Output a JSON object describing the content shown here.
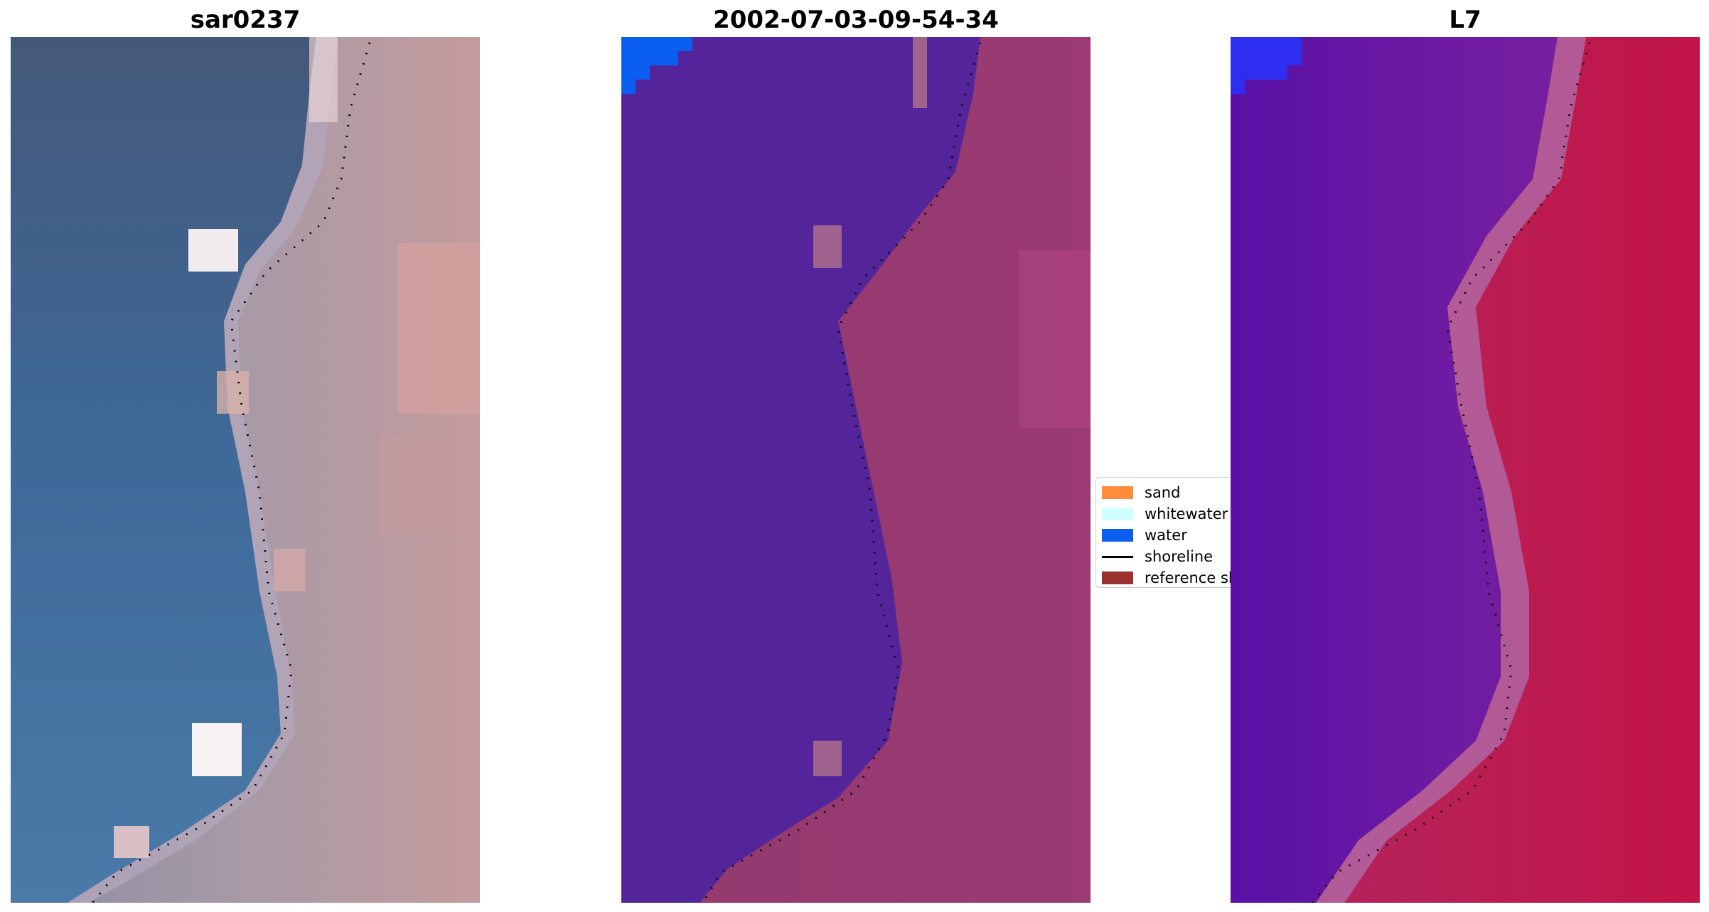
{
  "panels": [
    {
      "title": "sar0237"
    },
    {
      "title": "2002-07-03-09-54-34"
    },
    {
      "title": "L7"
    }
  ],
  "legend": {
    "items": [
      {
        "label": "sand",
        "kind": "patch",
        "color": "#ff8c3a"
      },
      {
        "label": "whitewater",
        "kind": "patch",
        "color": "#cfffff"
      },
      {
        "label": "water",
        "kind": "patch",
        "color": "#0a5ef0"
      },
      {
        "label": "shoreline",
        "kind": "line",
        "color": "#000000"
      },
      {
        "label": "reference shoreline",
        "kind": "patch",
        "color": "#9b3030"
      }
    ]
  },
  "colors": {
    "rgb_water": "#3f6b9c",
    "rgb_land": "#b99a9e",
    "class_water": "#53249a",
    "class_land": "#9b3a74",
    "index_water": "#5a10a6",
    "index_land": "#c21448"
  }
}
